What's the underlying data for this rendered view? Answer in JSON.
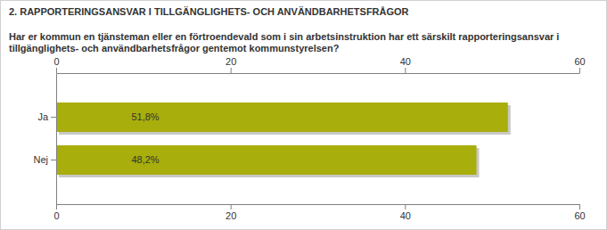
{
  "chart_data": {
    "type": "bar",
    "orientation": "horizontal",
    "title": "2. RAPPORTERINGSANSVAR I TILLGÄNGLIGHETS- OCH ANVÄNDBARHETSFRÅGOR",
    "subtitle": "Har er kommun en tjänsteman eller en förtroendevald som i sin arbetsinstruktion har ett särskilt rapporteringsansvar i tillgänglighets- och användbarhetsfrågor gentemot kommunstyrelsen?",
    "categories": [
      "Ja",
      "Nej"
    ],
    "values": [
      51.8,
      48.2
    ],
    "value_labels": [
      "51,8%",
      "48,2%"
    ],
    "color": "#a8ae0c",
    "xlim": [
      0,
      60
    ],
    "xticks": [
      0,
      20,
      40,
      60
    ],
    "grid": false,
    "data_labels": true
  }
}
